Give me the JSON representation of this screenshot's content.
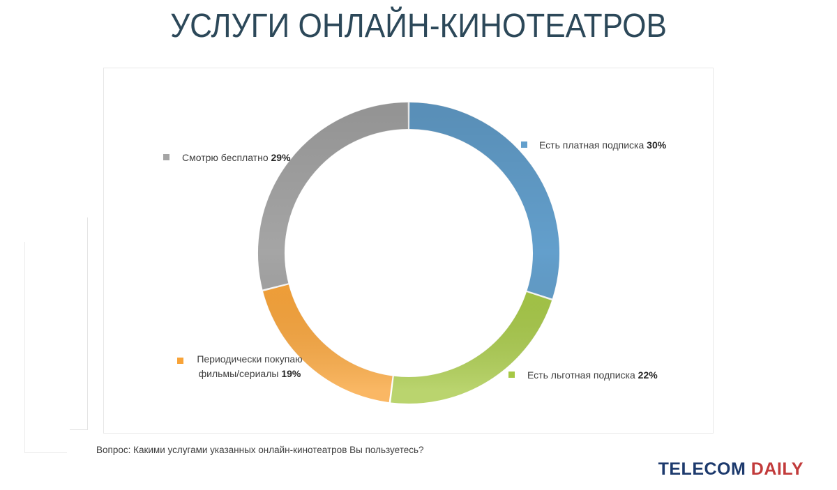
{
  "page": {
    "title": "УСЛУГИ ОНЛАЙН-КИНОТЕАТРОВ",
    "title_color": "#2c4859",
    "question": "Вопрос: Какими услугами указанных онлайн-кинотеатров Вы пользуетесь?"
  },
  "logo": {
    "telecom": "TELECOM",
    "daily": "DAILY",
    "telecom_color": "#1d3a6d",
    "daily_color": "#c23b3b"
  },
  "chart_data": {
    "type": "pie",
    "subtype": "donut",
    "direction": "clockwise",
    "start_angle_deg": 0,
    "hole_ratio": 0.82,
    "title": "УСЛУГИ ОНЛАЙН-КИНОТЕАТРОВ",
    "legend_position": "callout labels beside slices",
    "slices": [
      {
        "name": "paid",
        "label": "Есть платная подписка",
        "value": 30,
        "color": "#639fcc"
      },
      {
        "name": "discount",
        "label": "Есть льготная подписка",
        "value": 22,
        "color": "#a6c845"
      },
      {
        "name": "purchase",
        "label": "Периодически покупаю фильмы/сериалы",
        "value": 19,
        "color": "#f8a338"
      },
      {
        "name": "free",
        "label": "Смотрю бесплатно",
        "value": 29,
        "color": "#a5a5a5"
      }
    ]
  },
  "labels": {
    "paid": {
      "text": "Есть платная подписка",
      "pct": "30%"
    },
    "discount": {
      "text": "Есть льготная подписка",
      "pct": "22%"
    },
    "purchase": {
      "line1": "Периодически покупаю",
      "line2": "фильмы/сериалы",
      "pct": "19%"
    },
    "free": {
      "text": "Смотрю бесплатно",
      "pct": "29%"
    }
  }
}
